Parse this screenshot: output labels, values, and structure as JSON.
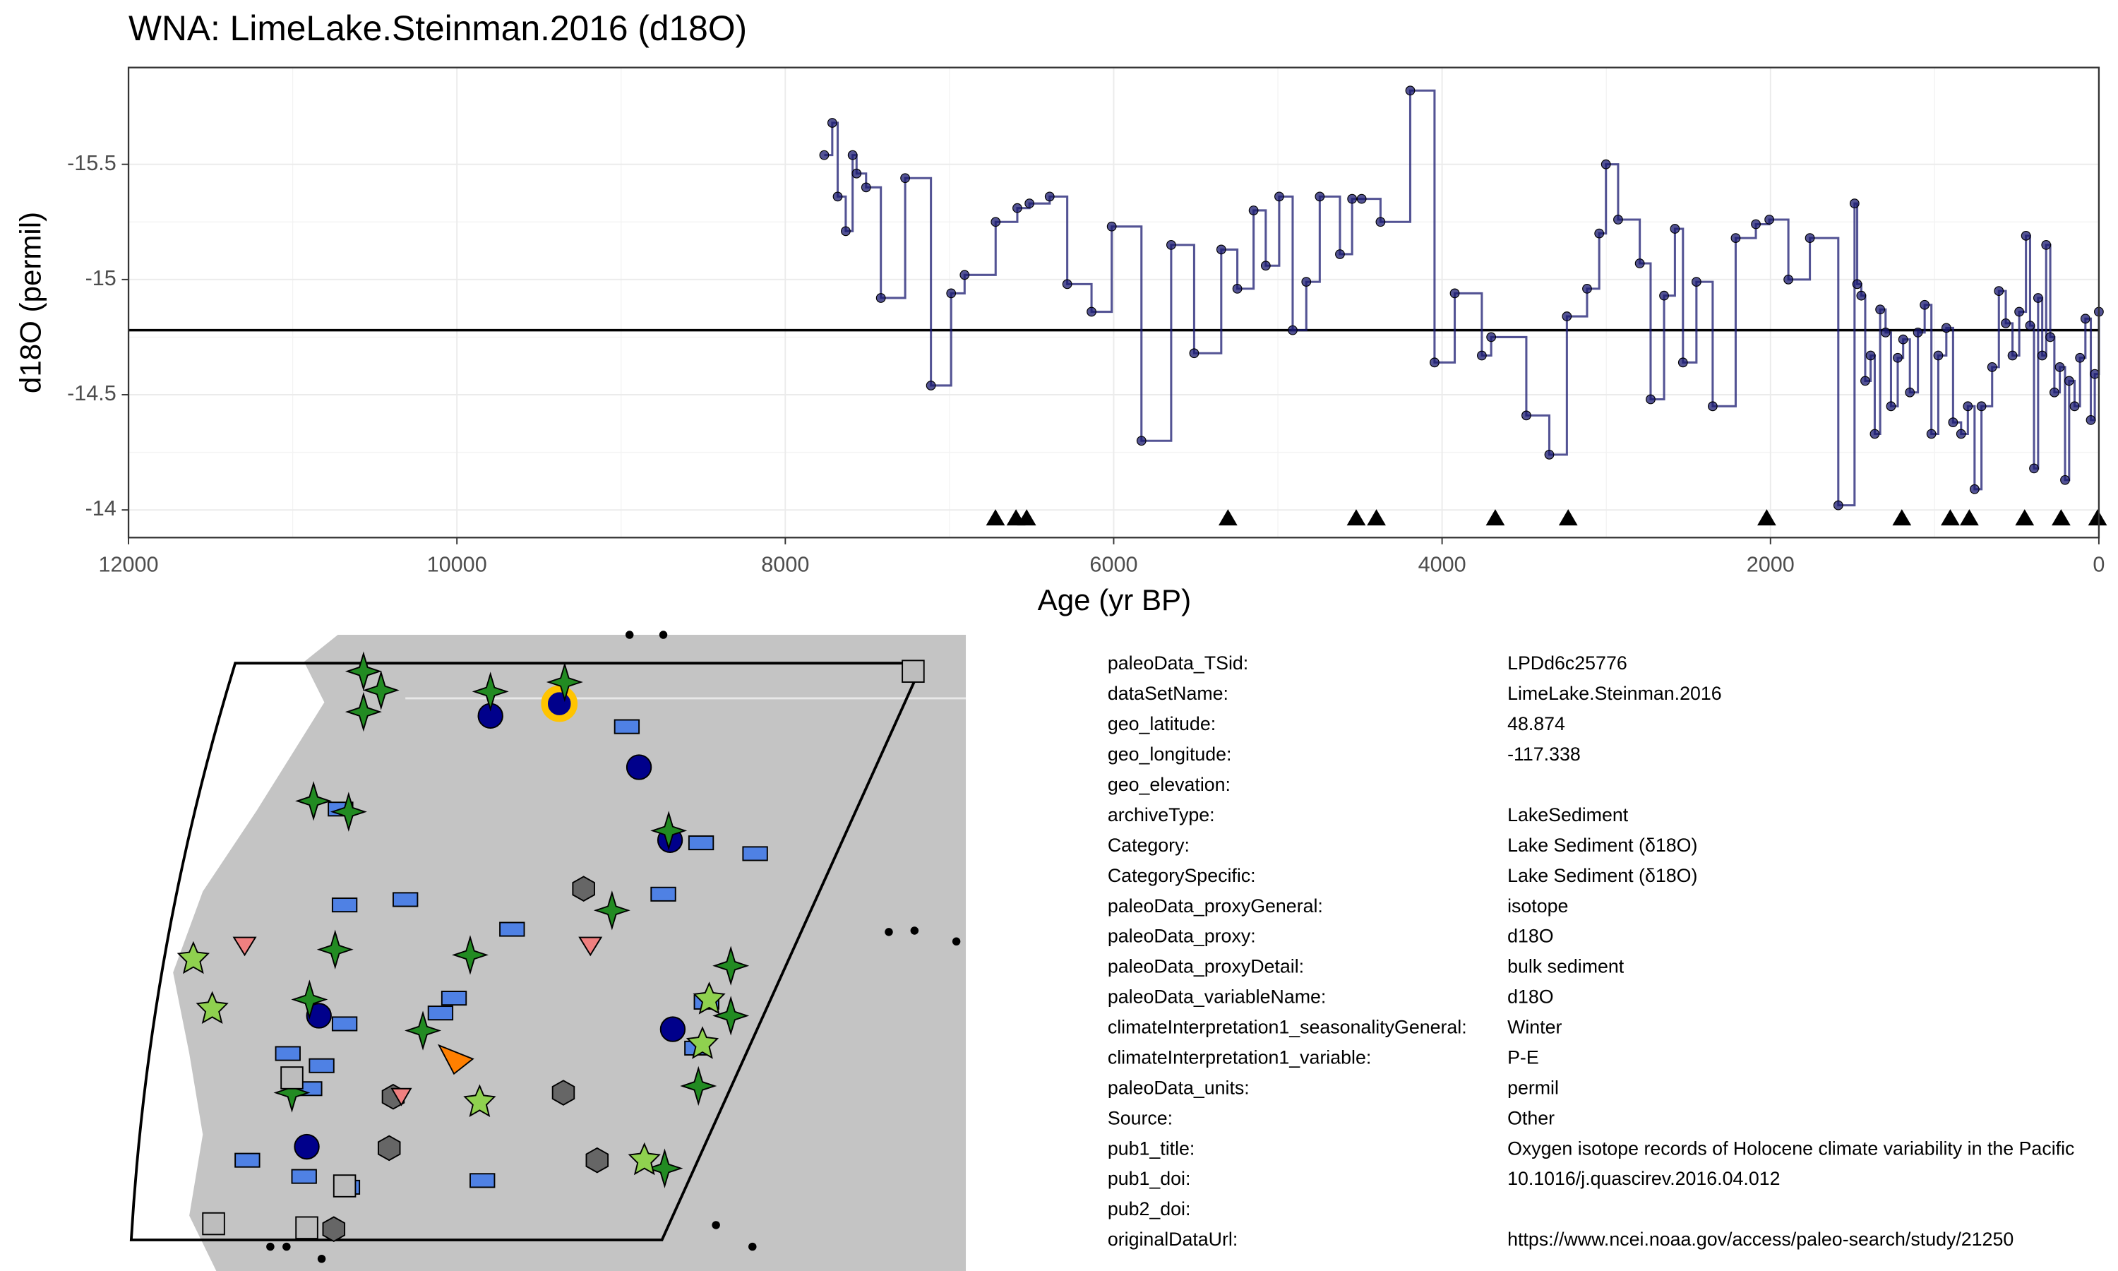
{
  "chart_data": {
    "type": "step",
    "title": "WNA: LimeLake.Steinman.2016 (d18O)",
    "xlabel": "Age (yr BP)",
    "ylabel": "d18O (permil)",
    "xlim": [
      12000,
      0
    ],
    "xticks": [
      12000,
      10000,
      8000,
      6000,
      4000,
      2000,
      0
    ],
    "ylim": [
      -13.88,
      -15.92
    ],
    "yticks": [
      -15.5,
      -15.0,
      -14.5,
      -14.0
    ],
    "grid": true,
    "color": "#191970",
    "hline": -14.78,
    "x": [
      7763,
      7714,
      7681,
      7632,
      7590,
      7566,
      7508,
      7418,
      7270,
      7113,
      6990,
      6908,
      6719,
      6587,
      6513,
      6390,
      6283,
      6135,
      6012,
      5831,
      5650,
      5510,
      5345,
      5247,
      5148,
      5074,
      4992,
      4910,
      4827,
      4745,
      4622,
      4548,
      4490,
      4375,
      4194,
      4046,
      3923,
      3758,
      3701,
      3487,
      3347,
      3240,
      3117,
      3043,
      3002,
      2928,
      2796,
      2730,
      2648,
      2582,
      2533,
      2451,
      2352,
      2212,
      2089,
      2007,
      1891,
      1760,
      1587,
      1488,
      1472,
      1447,
      1423,
      1390,
      1365,
      1332,
      1299,
      1266,
      1225,
      1192,
      1151,
      1102,
      1061,
      1020,
      978,
      929,
      888,
      839,
      798,
      757,
      715,
      650,
      609,
      567,
      526,
      485,
      444,
      419,
      395,
      370,
      345,
      321,
      296,
      271,
      238,
      206,
      181,
      148,
      115,
      82,
      49,
      25,
      0
    ],
    "values": [
      -15.54,
      -15.68,
      -15.36,
      -15.21,
      -15.54,
      -15.46,
      -15.4,
      -14.92,
      -15.44,
      -14.54,
      -14.94,
      -15.02,
      -15.25,
      -15.31,
      -15.33,
      -15.36,
      -14.98,
      -14.86,
      -15.23,
      -14.3,
      -15.15,
      -14.68,
      -15.13,
      -14.96,
      -15.3,
      -15.06,
      -15.36,
      -14.78,
      -14.99,
      -15.36,
      -15.11,
      -15.35,
      -15.35,
      -15.25,
      -15.82,
      -14.64,
      -14.94,
      -14.67,
      -14.75,
      -14.41,
      -14.24,
      -14.84,
      -14.96,
      -15.2,
      -15.5,
      -15.26,
      -15.07,
      -14.48,
      -14.93,
      -15.22,
      -14.64,
      -14.99,
      -14.45,
      -15.18,
      -15.24,
      -15.26,
      -15.0,
      -15.18,
      -14.02,
      -15.33,
      -14.98,
      -14.93,
      -14.56,
      -14.67,
      -14.33,
      -14.87,
      -14.77,
      -14.45,
      -14.66,
      -14.74,
      -14.51,
      -14.77,
      -14.89,
      -14.33,
      -14.67,
      -14.79,
      -14.38,
      -14.33,
      -14.45,
      -14.09,
      -14.45,
      -14.62,
      -14.95,
      -14.81,
      -14.67,
      -14.86,
      -15.19,
      -14.8,
      -14.18,
      -14.92,
      -14.67,
      -15.15,
      -14.75,
      -14.51,
      -14.62,
      -14.13,
      -14.56,
      -14.45,
      -14.66,
      -14.83,
      -14.39,
      -14.59,
      -14.86
    ],
    "tie_points": [
      6720,
      6595,
      6530,
      5304,
      4523,
      4400,
      3676,
      3232,
      2023,
      1200,
      905,
      789,
      452,
      230,
      8
    ]
  },
  "metadata": {
    "rows": [
      {
        "key": "paleoData_TSid:",
        "value": "LPDd6c25776"
      },
      {
        "key": "dataSetName:",
        "value": "LimeLake.Steinman.2016"
      },
      {
        "key": "geo_latitude:",
        "value": "48.874"
      },
      {
        "key": "geo_longitude:",
        "value": "-117.338"
      },
      {
        "key": "geo_elevation:"
      },
      {
        "key": "archiveType:",
        "value": "LakeSediment"
      },
      {
        "key": "Category:",
        "value": "Lake Sediment (δ18O)"
      },
      {
        "key": "CategorySpecific:",
        "value": "Lake Sediment (δ18O)"
      },
      {
        "key": "paleoData_proxyGeneral:",
        "value": "isotope"
      },
      {
        "key": "paleoData_proxy:",
        "value": "d18O"
      },
      {
        "key": "paleoData_proxyDetail:",
        "value": "bulk sediment"
      },
      {
        "key": "paleoData_variableName:",
        "value": "d18O"
      },
      {
        "key": "climateInterpretation1_seasonalityGeneral:",
        "value": "Winter"
      },
      {
        "key": "climateInterpretation1_variable:",
        "value": "P-E"
      },
      {
        "key": "paleoData_units:",
        "value": "permil"
      },
      {
        "key": "Source:",
        "value": "Other"
      },
      {
        "key": "pub1_title:",
        "value": "Oxygen isotope records of Holocene climate variability in the Pacific"
      },
      {
        "key": "pub1_doi:",
        "value": "10.1016/j.quascirev.2016.04.012"
      },
      {
        "key": "pub2_doi:"
      },
      {
        "key": "originalDataUrl:",
        "value": "https://www.ncei.noaa.gov/access/paleo-search/study/21250"
      }
    ]
  }
}
